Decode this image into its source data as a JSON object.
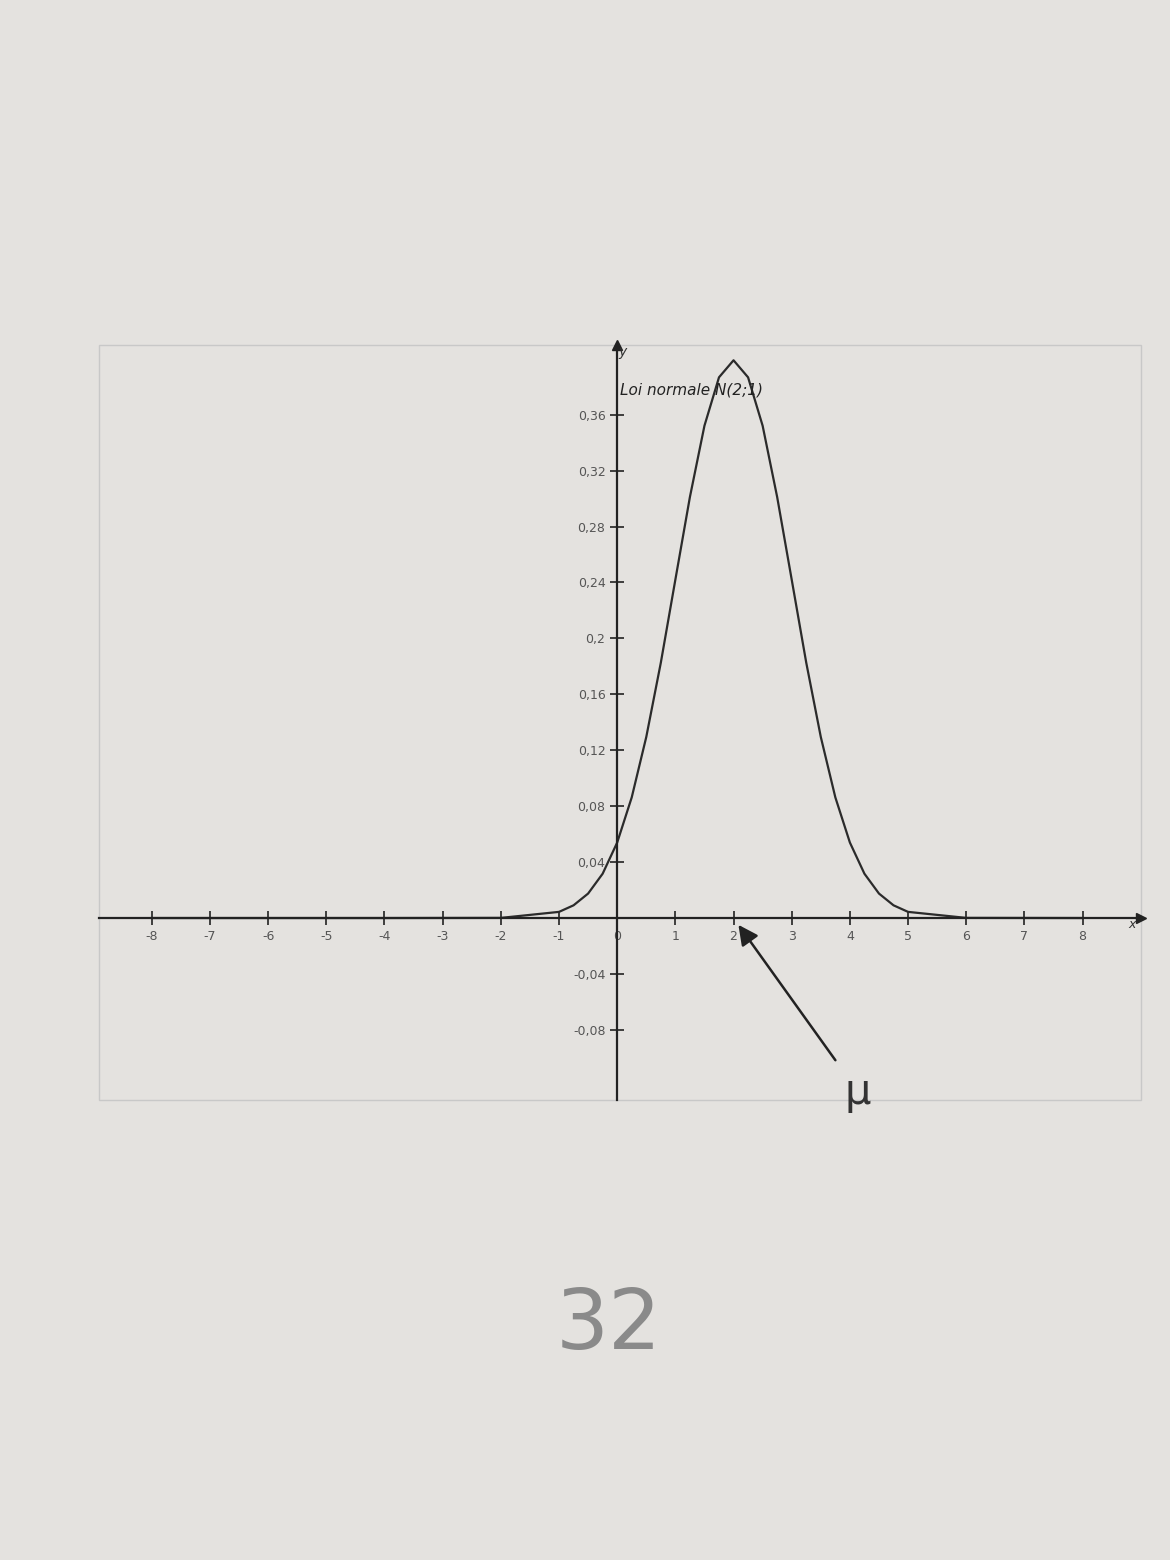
{
  "chart_data": {
    "type": "line",
    "title": "Loi normale N(2;1)",
    "x_label": "x",
    "y_label": "y",
    "x": [
      -8,
      -4,
      -2,
      -1,
      -0.75,
      -0.5,
      -0.25,
      0,
      0.25,
      0.5,
      0.75,
      1,
      1.25,
      1.5,
      1.75,
      2,
      2.25,
      2.5,
      2.75,
      3,
      3.25,
      3.5,
      3.75,
      4,
      4.25,
      4.5,
      4.75,
      5,
      6,
      8
    ],
    "series": [
      {
        "color": "#2b2b2b",
        "values": [
          0.0,
          0.0,
          0.0001,
          0.0044,
          0.0091,
          0.0175,
          0.0317,
          0.054,
          0.0863,
          0.1295,
          0.1826,
          0.242,
          0.3011,
          0.3521,
          0.3867,
          0.3989,
          0.3867,
          0.3521,
          0.3011,
          0.242,
          0.1826,
          0.1295,
          0.0863,
          0.054,
          0.0317,
          0.0175,
          0.0091,
          0.0044,
          0.0001,
          0.0
        ]
      }
    ],
    "xlim": [
      -8.9,
      9.0
    ],
    "ylim": [
      -0.13,
      0.41
    ],
    "xticks": [
      -8,
      -7,
      -6,
      -5,
      -4,
      -3,
      -2,
      -1,
      0,
      1,
      2,
      3,
      4,
      5,
      6,
      7,
      8
    ],
    "yticks": [
      {
        "value": -0.08,
        "label": "-0,08"
      },
      {
        "value": -0.04,
        "label": "-0,04"
      },
      {
        "value": 0.04,
        "label": "0,04"
      },
      {
        "value": 0.08,
        "label": "0,08"
      },
      {
        "value": 0.12,
        "label": "0,12"
      },
      {
        "value": 0.16,
        "label": "0,16"
      },
      {
        "value": 0.2,
        "label": "0,2"
      },
      {
        "value": 0.24,
        "label": "0,24"
      },
      {
        "value": 0.28,
        "label": "0,28"
      },
      {
        "value": 0.32,
        "label": "0,32"
      },
      {
        "value": 0.36,
        "label": "0,36"
      }
    ],
    "grid": false,
    "annotations": [
      {
        "text": "μ",
        "x": 2
      }
    ],
    "footer": "32"
  }
}
